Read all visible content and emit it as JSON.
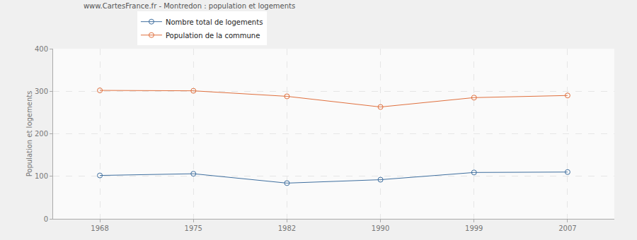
{
  "chart_data": {
    "type": "line",
    "title": "www.CartesFrance.fr - Montredon : population et logements",
    "y_label": "Population et logements",
    "categories": [
      "1968",
      "1975",
      "1982",
      "1990",
      "1999",
      "2007"
    ],
    "series": [
      {
        "name": "Nombre total de logements",
        "color": "#3f6f9f",
        "values": [
          102,
          106,
          84,
          92,
          109,
          110
        ],
        "marker": "circle"
      },
      {
        "name": "Population de la commune",
        "color": "#e0703e",
        "values": [
          302,
          301,
          288,
          263,
          285,
          290
        ],
        "marker": "circle"
      }
    ],
    "ylim": [
      0,
      400
    ],
    "yticks": [
      0,
      100,
      200,
      300,
      400
    ],
    "grid": true,
    "legend": "top"
  }
}
